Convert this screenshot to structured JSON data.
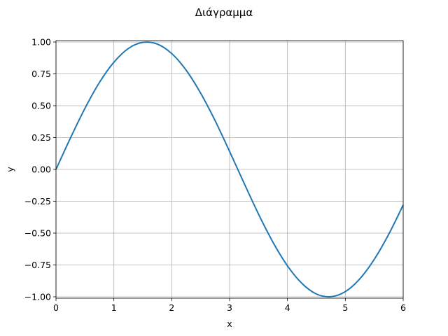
{
  "chart_data": {
    "type": "line",
    "title": "Διάγραμμα",
    "xlabel": "x",
    "ylabel": "y",
    "xlim": [
      0,
      6
    ],
    "ylim": [
      -1.0,
      1.0
    ],
    "grid": true,
    "x_ticks": [
      "0",
      "1",
      "2",
      "3",
      "4",
      "5",
      "6"
    ],
    "y_ticks": [
      "1.00",
      "0.75",
      "0.50",
      "0.25",
      "0.00",
      "−0.25",
      "−0.50",
      "−0.75",
      "−1.00"
    ],
    "series": [
      {
        "color": "#1f77b4",
        "x": [
          0.0,
          0.25,
          0.5,
          0.75,
          1.0,
          1.25,
          1.5,
          1.75,
          2.0,
          2.25,
          2.5,
          2.75,
          3.0,
          3.25,
          3.5,
          3.75,
          4.0,
          4.25,
          4.5,
          4.75,
          5.0,
          5.25,
          5.5,
          5.75,
          6.0
        ],
        "y": [
          0.0,
          0.247,
          0.479,
          0.682,
          0.841,
          0.949,
          0.997,
          0.984,
          0.909,
          0.778,
          0.598,
          0.382,
          0.141,
          -0.108,
          -0.351,
          -0.572,
          -0.757,
          -0.895,
          -0.978,
          -0.999,
          -0.959,
          -0.859,
          -0.706,
          -0.509,
          -0.279
        ]
      }
    ]
  }
}
